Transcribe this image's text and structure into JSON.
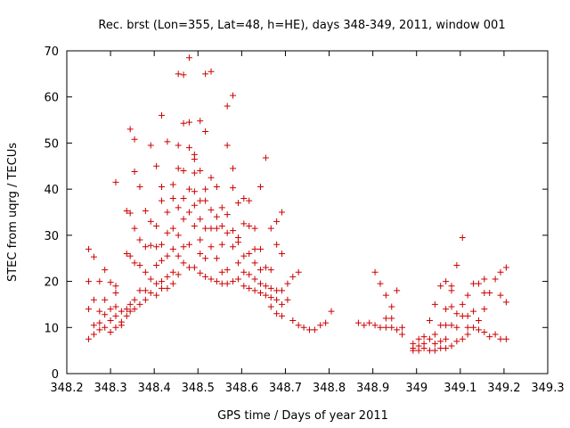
{
  "chart_data": {
    "type": "scatter",
    "title": "Rec. brst (Lon=355, Lat=48, h=HE), days 348-349, 2011, window 001",
    "xlabel": "GPS time / Days of year 2011",
    "ylabel": "STEC from uqrg / TECUs",
    "xlim": [
      348.2,
      349.3
    ],
    "ylim": [
      0,
      70
    ],
    "xticks": [
      "348.2",
      "348.3",
      "348.4",
      "348.5",
      "348.6",
      "348.7",
      "348.8",
      "348.9",
      "349",
      "349.1",
      "349.2",
      "349.3"
    ],
    "yticks": [
      "0",
      "10",
      "20",
      "30",
      "40",
      "50",
      "60",
      "70"
    ],
    "grid": false,
    "marker": "+",
    "color": "#cc0000",
    "points": [
      [
        348.25,
        27.0
      ],
      [
        348.25,
        20.0
      ],
      [
        348.25,
        14.0
      ],
      [
        348.25,
        7.5
      ],
      [
        348.262,
        25.3
      ],
      [
        348.262,
        16.0
      ],
      [
        348.262,
        10.5
      ],
      [
        348.262,
        8.5
      ],
      [
        348.275,
        20.0
      ],
      [
        348.275,
        13.5
      ],
      [
        348.275,
        11.0
      ],
      [
        348.275,
        9.5
      ],
      [
        348.287,
        22.5
      ],
      [
        348.287,
        16.0
      ],
      [
        348.287,
        12.8
      ],
      [
        348.287,
        10.0
      ],
      [
        348.3,
        19.8
      ],
      [
        348.3,
        14.0
      ],
      [
        348.3,
        11.5
      ],
      [
        348.3,
        9.0
      ],
      [
        348.312,
        17.5
      ],
      [
        348.312,
        14.5
      ],
      [
        348.312,
        12.5
      ],
      [
        348.312,
        10.0
      ],
      [
        348.312,
        41.5
      ],
      [
        348.312,
        19.0
      ],
      [
        348.325,
        13.5
      ],
      [
        348.325,
        11.2
      ],
      [
        348.325,
        10.5
      ],
      [
        348.337,
        35.3
      ],
      [
        348.337,
        26.0
      ],
      [
        348.337,
        14.0
      ],
      [
        348.337,
        12.5
      ],
      [
        348.345,
        53.0
      ],
      [
        348.345,
        34.8
      ],
      [
        348.345,
        25.5
      ],
      [
        348.345,
        15.0
      ],
      [
        348.345,
        13.5
      ],
      [
        348.355,
        50.8
      ],
      [
        348.355,
        43.8
      ],
      [
        348.355,
        31.5
      ],
      [
        348.355,
        24.0
      ],
      [
        348.355,
        16.0
      ],
      [
        348.355,
        14.0
      ],
      [
        348.367,
        40.5
      ],
      [
        348.367,
        29.0
      ],
      [
        348.367,
        23.5
      ],
      [
        348.367,
        18.0
      ],
      [
        348.367,
        15.0
      ],
      [
        348.38,
        35.3
      ],
      [
        348.38,
        27.5
      ],
      [
        348.38,
        22.0
      ],
      [
        348.38,
        18.0
      ],
      [
        348.38,
        16.0
      ],
      [
        348.392,
        49.5
      ],
      [
        348.392,
        33.0
      ],
      [
        348.392,
        27.8
      ],
      [
        348.392,
        20.5
      ],
      [
        348.392,
        17.5
      ],
      [
        348.405,
        45.0
      ],
      [
        348.405,
        32.0
      ],
      [
        348.405,
        27.5
      ],
      [
        348.405,
        23.5
      ],
      [
        348.405,
        19.5
      ],
      [
        348.405,
        17.0
      ],
      [
        348.417,
        56.0
      ],
      [
        348.417,
        40.5
      ],
      [
        348.417,
        37.5
      ],
      [
        348.417,
        28.0
      ],
      [
        348.417,
        24.5
      ],
      [
        348.417,
        20.0
      ],
      [
        348.417,
        18.5
      ],
      [
        348.43,
        50.3
      ],
      [
        348.43,
        35.0
      ],
      [
        348.43,
        30.5
      ],
      [
        348.43,
        25.5
      ],
      [
        348.43,
        21.0
      ],
      [
        348.43,
        18.5
      ],
      [
        348.443,
        41.0
      ],
      [
        348.443,
        38.0
      ],
      [
        348.443,
        31.5
      ],
      [
        348.443,
        27.0
      ],
      [
        348.443,
        22.0
      ],
      [
        348.443,
        19.5
      ],
      [
        348.455,
        65.0
      ],
      [
        348.455,
        49.5
      ],
      [
        348.455,
        44.5
      ],
      [
        348.455,
        36.0
      ],
      [
        348.455,
        30.0
      ],
      [
        348.455,
        25.5
      ],
      [
        348.455,
        21.5
      ],
      [
        348.467,
        64.8
      ],
      [
        348.467,
        54.3
      ],
      [
        348.467,
        44.0
      ],
      [
        348.467,
        38.0
      ],
      [
        348.467,
        33.5
      ],
      [
        348.467,
        27.5
      ],
      [
        348.467,
        24.0
      ],
      [
        348.48,
        68.5
      ],
      [
        348.48,
        54.5
      ],
      [
        348.48,
        49.0
      ],
      [
        348.48,
        40.0
      ],
      [
        348.48,
        35.0
      ],
      [
        348.48,
        28.0
      ],
      [
        348.48,
        23.0
      ],
      [
        348.492,
        47.5
      ],
      [
        348.492,
        46.5
      ],
      [
        348.492,
        43.5
      ],
      [
        348.492,
        39.5
      ],
      [
        348.492,
        36.5
      ],
      [
        348.492,
        32.0
      ],
      [
        348.492,
        23.0
      ],
      [
        348.505,
        54.8
      ],
      [
        348.505,
        44.0
      ],
      [
        348.505,
        37.5
      ],
      [
        348.505,
        33.5
      ],
      [
        348.505,
        29.0
      ],
      [
        348.505,
        26.0
      ],
      [
        348.505,
        21.8
      ],
      [
        348.517,
        65.0
      ],
      [
        348.517,
        52.5
      ],
      [
        348.517,
        40.0
      ],
      [
        348.517,
        37.5
      ],
      [
        348.517,
        31.5
      ],
      [
        348.517,
        25.0
      ],
      [
        348.517,
        21.0
      ],
      [
        348.53,
        65.5
      ],
      [
        348.53,
        42.5
      ],
      [
        348.53,
        35.5
      ],
      [
        348.53,
        31.5
      ],
      [
        348.53,
        27.5
      ],
      [
        348.53,
        20.5
      ],
      [
        348.543,
        40.5
      ],
      [
        348.543,
        34.0
      ],
      [
        348.543,
        31.5
      ],
      [
        348.543,
        25.0
      ],
      [
        348.543,
        20.0
      ],
      [
        348.555,
        36.0
      ],
      [
        348.555,
        32.0
      ],
      [
        348.555,
        28.0
      ],
      [
        348.555,
        22.0
      ],
      [
        348.555,
        19.5
      ],
      [
        348.567,
        58.0
      ],
      [
        348.567,
        49.5
      ],
      [
        348.567,
        34.5
      ],
      [
        348.567,
        30.5
      ],
      [
        348.567,
        22.5
      ],
      [
        348.567,
        19.5
      ],
      [
        348.58,
        60.3
      ],
      [
        348.58,
        44.5
      ],
      [
        348.58,
        40.3
      ],
      [
        348.58,
        31.0
      ],
      [
        348.58,
        27.5
      ],
      [
        348.58,
        20.0
      ],
      [
        348.592,
        37.0
      ],
      [
        348.592,
        29.5
      ],
      [
        348.592,
        28.5
      ],
      [
        348.592,
        24.0
      ],
      [
        348.592,
        20.5
      ],
      [
        348.605,
        38.0
      ],
      [
        348.605,
        32.5
      ],
      [
        348.605,
        25.5
      ],
      [
        348.605,
        22.0
      ],
      [
        348.605,
        19.0
      ],
      [
        348.617,
        37.5
      ],
      [
        348.617,
        32.0
      ],
      [
        348.617,
        26.0
      ],
      [
        348.617,
        21.5
      ],
      [
        348.617,
        18.5
      ],
      [
        348.63,
        31.5
      ],
      [
        348.63,
        27.0
      ],
      [
        348.63,
        24.0
      ],
      [
        348.63,
        20.5
      ],
      [
        348.63,
        18.0
      ],
      [
        348.643,
        40.5
      ],
      [
        348.643,
        27.0
      ],
      [
        348.643,
        22.5
      ],
      [
        348.643,
        19.5
      ],
      [
        348.643,
        17.5
      ],
      [
        348.655,
        46.8
      ],
      [
        348.655,
        23.0
      ],
      [
        348.655,
        19.0
      ],
      [
        348.655,
        17.0
      ],
      [
        348.667,
        31.5
      ],
      [
        348.667,
        22.5
      ],
      [
        348.667,
        18.5
      ],
      [
        348.667,
        16.5
      ],
      [
        348.667,
        14.5
      ],
      [
        348.68,
        33.0
      ],
      [
        348.68,
        28.0
      ],
      [
        348.68,
        18.0
      ],
      [
        348.68,
        16.0
      ],
      [
        348.68,
        13.0
      ],
      [
        348.692,
        35.0
      ],
      [
        348.692,
        26.0
      ],
      [
        348.692,
        18.0
      ],
      [
        348.692,
        15.0
      ],
      [
        348.692,
        12.5
      ],
      [
        348.705,
        19.5
      ],
      [
        348.705,
        16.0
      ],
      [
        348.717,
        21.0
      ],
      [
        348.717,
        11.5
      ],
      [
        348.73,
        22.0
      ],
      [
        348.73,
        10.5
      ],
      [
        348.742,
        10.0
      ],
      [
        348.755,
        9.5
      ],
      [
        348.767,
        9.5
      ],
      [
        348.78,
        10.5
      ],
      [
        348.792,
        11.0
      ],
      [
        348.805,
        13.5
      ],
      [
        348.867,
        11.0
      ],
      [
        348.88,
        10.5
      ],
      [
        348.892,
        11.0
      ],
      [
        348.905,
        22.0
      ],
      [
        348.905,
        10.5
      ],
      [
        348.917,
        19.5
      ],
      [
        348.917,
        10.0
      ],
      [
        348.93,
        17.0
      ],
      [
        348.93,
        12.0
      ],
      [
        348.93,
        10.0
      ],
      [
        348.943,
        14.5
      ],
      [
        348.943,
        12.0
      ],
      [
        348.943,
        10.0
      ],
      [
        348.955,
        18.0
      ],
      [
        348.955,
        9.5
      ],
      [
        348.967,
        10.0
      ],
      [
        348.967,
        8.5
      ],
      [
        348.992,
        6.5
      ],
      [
        348.992,
        5.5
      ],
      [
        348.992,
        5.0
      ],
      [
        349.005,
        7.5
      ],
      [
        349.005,
        6.0
      ],
      [
        349.005,
        5.0
      ],
      [
        349.017,
        8.0
      ],
      [
        349.017,
        6.5
      ],
      [
        349.017,
        5.5
      ],
      [
        349.03,
        11.5
      ],
      [
        349.03,
        7.5
      ],
      [
        349.03,
        5.0
      ],
      [
        349.042,
        15.0
      ],
      [
        349.042,
        8.5
      ],
      [
        349.042,
        6.5
      ],
      [
        349.042,
        5.0
      ],
      [
        349.055,
        19.0
      ],
      [
        349.055,
        10.5
      ],
      [
        349.055,
        7.0
      ],
      [
        349.055,
        5.5
      ],
      [
        349.067,
        20.0
      ],
      [
        349.067,
        14.0
      ],
      [
        349.067,
        10.5
      ],
      [
        349.067,
        7.5
      ],
      [
        349.067,
        5.5
      ],
      [
        349.08,
        19.0
      ],
      [
        349.08,
        18.0
      ],
      [
        349.08,
        14.5
      ],
      [
        349.08,
        10.5
      ],
      [
        349.08,
        6.0
      ],
      [
        349.092,
        23.5
      ],
      [
        349.092,
        13.0
      ],
      [
        349.092,
        10.0
      ],
      [
        349.092,
        7.0
      ],
      [
        349.105,
        29.5
      ],
      [
        349.105,
        15.0
      ],
      [
        349.105,
        12.5
      ],
      [
        349.105,
        7.5
      ],
      [
        349.117,
        17.0
      ],
      [
        349.117,
        12.5
      ],
      [
        349.117,
        10.0
      ],
      [
        349.117,
        8.5
      ],
      [
        349.13,
        19.5
      ],
      [
        349.13,
        13.5
      ],
      [
        349.13,
        10.0
      ],
      [
        349.142,
        19.5
      ],
      [
        349.142,
        11.5
      ],
      [
        349.142,
        9.5
      ],
      [
        349.155,
        20.5
      ],
      [
        349.155,
        17.5
      ],
      [
        349.155,
        14.0
      ],
      [
        349.155,
        9.0
      ],
      [
        349.167,
        17.5
      ],
      [
        349.167,
        8.0
      ],
      [
        349.18,
        20.5
      ],
      [
        349.18,
        8.5
      ],
      [
        349.192,
        22.0
      ],
      [
        349.192,
        17.0
      ],
      [
        349.192,
        7.5
      ],
      [
        349.205,
        23.0
      ],
      [
        349.205,
        15.5
      ],
      [
        349.205,
        7.5
      ]
    ]
  }
}
